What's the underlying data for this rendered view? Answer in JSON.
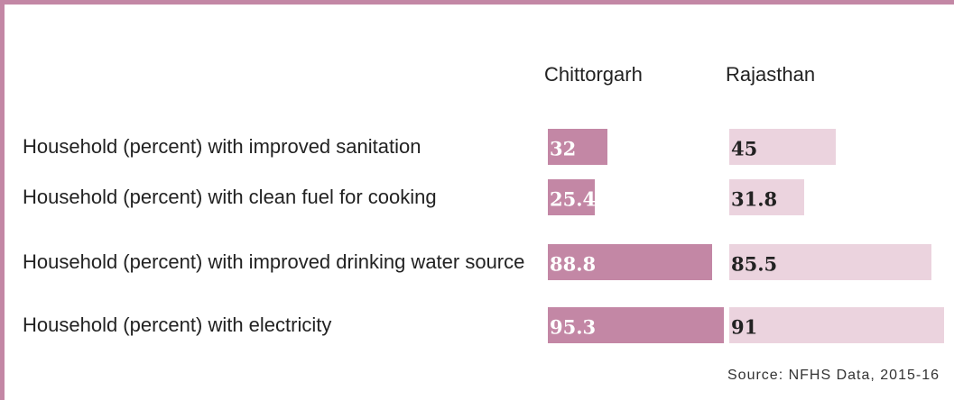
{
  "chart_data": {
    "type": "bar",
    "orientation": "horizontal",
    "categories": [
      "Household (percent) with improved sanitation",
      "Household (percent) with clean fuel for cooking",
      "Household (percent) with improved drinking water source",
      "Household (percent) with electricity"
    ],
    "series": [
      {
        "name": "Chittorgarh",
        "color": "#c387a5",
        "label_color": "#ffffff",
        "values": [
          32,
          25.4,
          88.8,
          95.3
        ]
      },
      {
        "name": "Rajasthan",
        "color": "#ebd3de",
        "label_color": "#222222",
        "values": [
          45,
          31.8,
          85.5,
          91
        ]
      }
    ],
    "xlim": [
      0,
      100
    ],
    "source": "Source: NFHS Data, 2015-16"
  }
}
